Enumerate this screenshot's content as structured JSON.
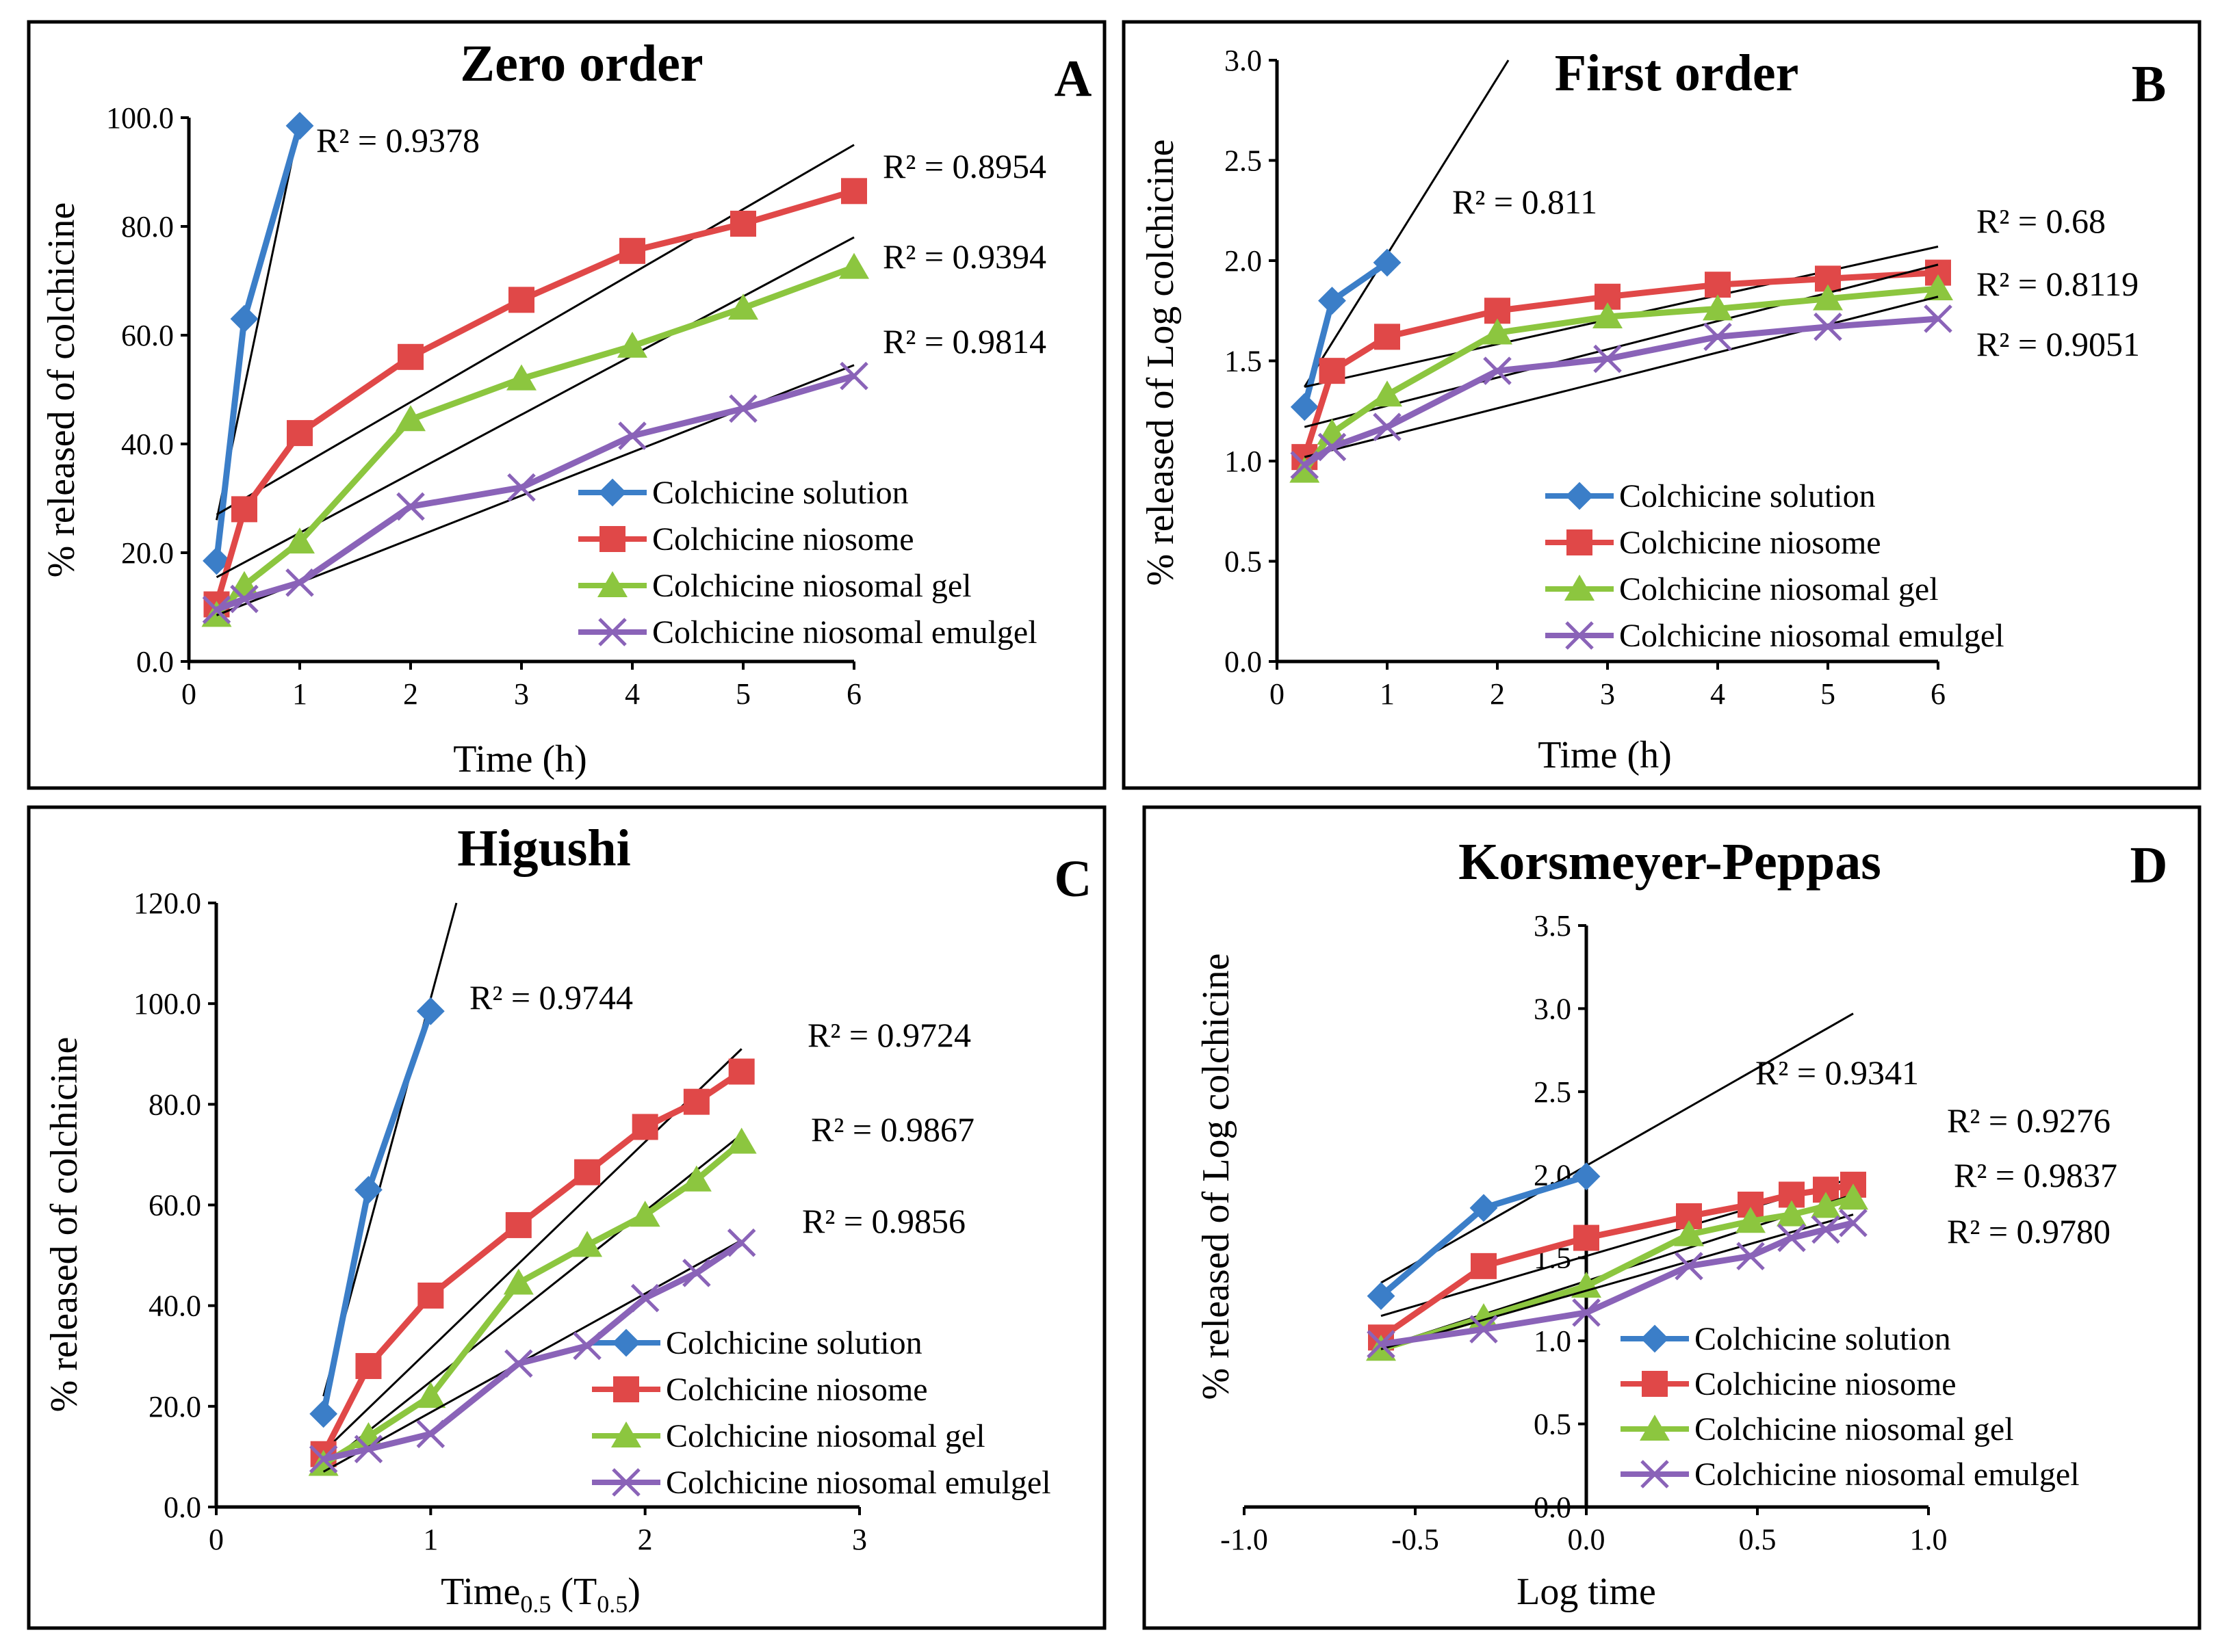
{
  "colors": {
    "solution": "#3b7ec8",
    "niosome": "#e04848",
    "gel": "#8cc63f",
    "emulgel": "#8a63b8"
  },
  "chart_data": [
    {
      "panel": "A",
      "type": "line",
      "title": "Zero order",
      "xlabel": "Time (h)",
      "ylabel": "% released of colchicine",
      "xlim": [
        0,
        6
      ],
      "ylim": [
        0,
        100
      ],
      "xticks": [
        "0",
        "1",
        "2",
        "3",
        "4",
        "5",
        "6"
      ],
      "yticks": [
        "0.0",
        "20.0",
        "40.0",
        "60.0",
        "80.0",
        "100.0"
      ],
      "series": [
        {
          "name": "Colchicine solution",
          "marker": "diamond",
          "x": [
            0.25,
            0.5,
            1
          ],
          "y": [
            18.5,
            63,
            98.5
          ],
          "trend": [
            [
              0.25,
              26
            ],
            [
              1,
              99
            ]
          ],
          "r2": "R² = 0.9378"
        },
        {
          "name": "Colchicine niosome",
          "marker": "square",
          "x": [
            0.25,
            0.5,
            1,
            2,
            3,
            4,
            5,
            6
          ],
          "y": [
            10.5,
            28,
            42,
            56,
            66.5,
            75.5,
            80.5,
            86.5
          ],
          "trend": [
            [
              0.25,
              27
            ],
            [
              6,
              95
            ]
          ],
          "r2": "R² = 0.8954"
        },
        {
          "name": "Colchicine niosomal gel",
          "marker": "triangle",
          "x": [
            0.25,
            0.5,
            1,
            2,
            3,
            4,
            5,
            6
          ],
          "y": [
            8.5,
            14,
            22,
            44.5,
            52,
            58,
            65,
            72.5
          ],
          "trend": [
            [
              0.25,
              15.5
            ],
            [
              6,
              78
            ]
          ],
          "r2": "R² = 0.9394"
        },
        {
          "name": "Colchicine niosomal emulgel",
          "marker": "x",
          "x": [
            0.25,
            0.5,
            1,
            2,
            3,
            4,
            5,
            6
          ],
          "y": [
            9.5,
            11.5,
            14.5,
            28.5,
            32,
            41.5,
            46.5,
            52.5
          ],
          "trend": [
            [
              0.25,
              8.5
            ],
            [
              6,
              54.5
            ]
          ],
          "r2": "R² = 0.9814"
        }
      ]
    },
    {
      "panel": "B",
      "type": "line",
      "title": "First order",
      "xlabel": "Time (h)",
      "ylabel": "% released of Log colchicine",
      "xlim": [
        0,
        6
      ],
      "ylim": [
        0,
        3
      ],
      "xticks": [
        "0",
        "1",
        "2",
        "3",
        "4",
        "5",
        "6"
      ],
      "yticks": [
        "0.0",
        "0.5",
        "1.0",
        "1.5",
        "2.0",
        "2.5",
        "3.0"
      ],
      "series": [
        {
          "name": "Colchicine solution",
          "marker": "diamond",
          "x": [
            0.25,
            0.5,
            1
          ],
          "y": [
            1.27,
            1.8,
            1.99
          ],
          "trend": [
            [
              0.25,
              1.37
            ],
            [
              2.1,
              3.0
            ]
          ],
          "r2": "R² = 0.811"
        },
        {
          "name": "Colchicine niosome",
          "marker": "square",
          "x": [
            0.25,
            0.5,
            1,
            2,
            3,
            4,
            5,
            6
          ],
          "y": [
            1.02,
            1.45,
            1.62,
            1.75,
            1.82,
            1.88,
            1.91,
            1.94
          ],
          "trend": [
            [
              0.25,
              1.37
            ],
            [
              6,
              2.07
            ]
          ],
          "r2": "R² = 0.68"
        },
        {
          "name": "Colchicine niosomal gel",
          "marker": "triangle",
          "x": [
            0.25,
            0.5,
            1,
            2,
            3,
            4,
            5,
            6
          ],
          "y": [
            0.95,
            1.14,
            1.33,
            1.64,
            1.72,
            1.76,
            1.81,
            1.86
          ],
          "trend": [
            [
              0.25,
              1.17
            ],
            [
              6,
              1.98
            ]
          ],
          "r2": "R² = 0.8119"
        },
        {
          "name": "Colchicine niosomal emulgel",
          "marker": "x",
          "x": [
            0.25,
            0.5,
            1,
            2,
            3,
            4,
            5,
            6
          ],
          "y": [
            0.98,
            1.07,
            1.17,
            1.45,
            1.51,
            1.62,
            1.67,
            1.71
          ],
          "trend": [
            [
              0.25,
              1.02
            ],
            [
              6,
              1.82
            ]
          ],
          "r2": "R² = 0.9051"
        }
      ]
    },
    {
      "panel": "C",
      "type": "line",
      "title": "Higushi",
      "xlabel": "Time",
      "xlabel_sub": "0.5",
      "xlabel_paren": "(T",
      "xlabel_paren_sub": "0.5",
      "xlabel_close": ")",
      "ylabel": "% released of colchicine",
      "xlim": [
        0,
        3
      ],
      "ylim": [
        0,
        120
      ],
      "xticks": [
        "0",
        "1",
        "2",
        "3"
      ],
      "yticks": [
        "0.0",
        "20.0",
        "40.0",
        "60.0",
        "80.0",
        "100.0",
        "120.0"
      ],
      "series": [
        {
          "name": "Colchicine solution",
          "marker": "diamond",
          "x": [
            0.5,
            0.71,
            1
          ],
          "y": [
            18.5,
            63,
            98.5
          ],
          "trend": [
            [
              0.5,
              22
            ],
            [
              1.12,
              120
            ]
          ],
          "r2": "R² = 0.9744"
        },
        {
          "name": "Colchicine niosome",
          "marker": "square",
          "x": [
            0.5,
            0.71,
            1,
            1.41,
            1.73,
            2,
            2.24,
            2.45
          ],
          "y": [
            10.5,
            28,
            42,
            56,
            66.5,
            75.5,
            80.5,
            86.5
          ],
          "trend": [
            [
              0.5,
              11
            ],
            [
              2.45,
              91
            ]
          ],
          "r2": "R² = 0.9724"
        },
        {
          "name": "Colchicine niosomal gel",
          "marker": "triangle",
          "x": [
            0.5,
            0.71,
            1,
            1.41,
            1.73,
            2,
            2.24,
            2.45
          ],
          "y": [
            8.5,
            14,
            22,
            44.5,
            52,
            58,
            65,
            72.5
          ],
          "trend": [
            [
              0.5,
              8
            ],
            [
              2.45,
              74
            ]
          ],
          "r2": "R² = 0.9867"
        },
        {
          "name": "Colchicine niosomal emulgel",
          "marker": "x",
          "x": [
            0.5,
            0.71,
            1,
            1.41,
            1.73,
            2,
            2.24,
            2.45
          ],
          "y": [
            9.5,
            11.5,
            14.5,
            28.5,
            32,
            41.5,
            46.5,
            52.5
          ],
          "trend": [
            [
              0.5,
              7
            ],
            [
              2.45,
              53
            ]
          ],
          "r2": "R² = 0.9856"
        }
      ]
    },
    {
      "panel": "D",
      "type": "line",
      "title": "Korsmeyer-Peppas",
      "xlabel": "Log time",
      "ylabel": "% released of Log colchicine",
      "xlim": [
        -1,
        1
      ],
      "ylim": [
        0,
        3.5
      ],
      "xticks": [
        "-1.0",
        "-0.5",
        "0.0",
        "0.5",
        "1.0"
      ],
      "yticks": [
        "0.0",
        "0.5",
        "1.0",
        "1.5",
        "2.0",
        "2.5",
        "3.0",
        "3.5"
      ],
      "series": [
        {
          "name": "Colchicine solution",
          "marker": "diamond",
          "x": [
            -0.6,
            -0.3,
            0
          ],
          "y": [
            1.27,
            1.8,
            1.99
          ],
          "trend": [
            [
              -0.6,
              1.35
            ],
            [
              0.78,
              2.97
            ]
          ],
          "r2": "R² = 0.9341"
        },
        {
          "name": "Colchicine niosome",
          "marker": "square",
          "x": [
            -0.6,
            -0.3,
            0,
            0.3,
            0.48,
            0.6,
            0.7,
            0.78
          ],
          "y": [
            1.02,
            1.45,
            1.62,
            1.75,
            1.82,
            1.88,
            1.91,
            1.94
          ],
          "trend": [
            [
              -0.6,
              1.15
            ],
            [
              0.78,
              1.98
            ]
          ],
          "r2": "R² = 0.9276"
        },
        {
          "name": "Colchicine niosomal gel",
          "marker": "triangle",
          "x": [
            -0.6,
            -0.3,
            0,
            0.3,
            0.48,
            0.6,
            0.7,
            0.78
          ],
          "y": [
            0.95,
            1.14,
            1.33,
            1.64,
            1.72,
            1.76,
            1.81,
            1.86
          ],
          "trend": [
            [
              -0.6,
              0.96
            ],
            [
              0.78,
              1.88
            ]
          ],
          "r2": "R² = 0.9837"
        },
        {
          "name": "Colchicine niosomal emulgel",
          "marker": "x",
          "x": [
            -0.6,
            -0.3,
            0,
            0.3,
            0.48,
            0.6,
            0.7,
            0.78
          ],
          "y": [
            0.98,
            1.07,
            1.17,
            1.45,
            1.51,
            1.62,
            1.67,
            1.71
          ],
          "trend": [
            [
              -0.6,
              0.95
            ],
            [
              0.78,
              1.76
            ]
          ],
          "r2": "R² = 0.9780"
        }
      ]
    }
  ]
}
